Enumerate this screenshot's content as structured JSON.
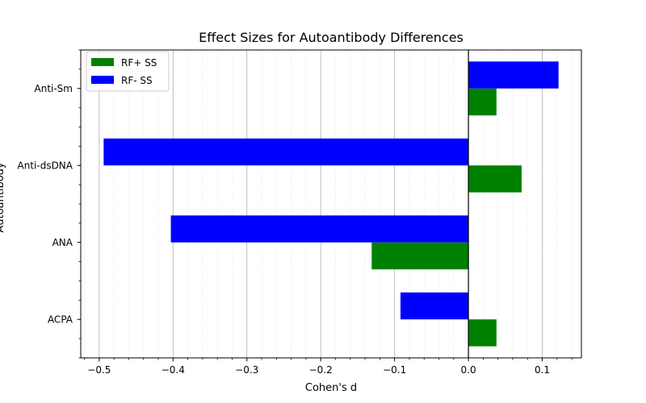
{
  "chart_data": {
    "type": "bar",
    "orientation": "horizontal",
    "title": "Effect Sizes for Autoantibody Differences",
    "xlabel": "Cohen's d",
    "ylabel": "Autoantibody",
    "categories": [
      "ACPA",
      "ANA",
      "Anti-dsDNA",
      "Anti-Sm"
    ],
    "series": [
      {
        "name": "RF+ SS",
        "color": "#008000",
        "values": [
          0.038,
          -0.131,
          0.072,
          0.038
        ]
      },
      {
        "name": "RF- SS",
        "color": "#0000ff",
        "values": [
          -0.092,
          -0.403,
          -0.494,
          0.122
        ]
      }
    ],
    "xlim": [
      -0.525,
      0.153
    ],
    "xticks": [
      -0.5,
      -0.4,
      -0.3,
      -0.2,
      -0.1,
      0.0,
      0.1
    ],
    "xtick_labels": [
      "−0.5",
      "−0.4",
      "−0.3",
      "−0.2",
      "−0.1",
      "0.0",
      "0.1"
    ],
    "grid": "vertical major and minor",
    "reference_line": 0,
    "legend_position": "upper-left"
  }
}
